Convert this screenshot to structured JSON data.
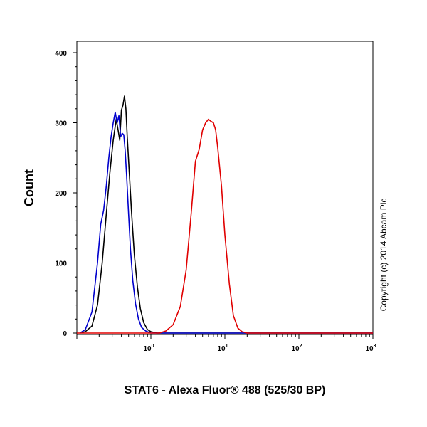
{
  "chart_data": {
    "type": "line",
    "title": "",
    "xlabel": "STAT6 - Alexa Fluor® 488 (525/30 BP)",
    "ylabel": "Count",
    "x_scale": "log",
    "xlim": [
      0.1,
      1000
    ],
    "ylim": [
      0,
      420
    ],
    "grid": false,
    "y_ticks": [
      0,
      100,
      200,
      300,
      400
    ],
    "x_ticks": [
      {
        "value": 1,
        "base": "10",
        "exp": "0"
      },
      {
        "value": 10,
        "base": "10",
        "exp": "1"
      },
      {
        "value": 100,
        "base": "10",
        "exp": "2"
      },
      {
        "value": 1000,
        "base": "10",
        "exp": "3"
      }
    ],
    "annotation": "Copyright (c) 2014 Abcam Plc",
    "series": [
      {
        "color": "#000000",
        "x": [
          0.11,
          0.13,
          0.16,
          0.19,
          0.22,
          0.25,
          0.28,
          0.31,
          0.34,
          0.36,
          0.38,
          0.4,
          0.42,
          0.44,
          0.46,
          0.48,
          0.51,
          0.55,
          0.6,
          0.66,
          0.72,
          0.8,
          0.9,
          1.0,
          1.2,
          1.5,
          2.0,
          3.0,
          1000
        ],
        "y": [
          0,
          2,
          10,
          40,
          100,
          170,
          230,
          275,
          305,
          290,
          275,
          318,
          325,
          338,
          320,
          280,
          230,
          170,
          110,
          65,
          35,
          15,
          5,
          2,
          0,
          0,
          0,
          0,
          0
        ]
      },
      {
        "color": "#0000cc",
        "x": [
          0.11,
          0.13,
          0.16,
          0.19,
          0.21,
          0.23,
          0.25,
          0.27,
          0.29,
          0.31,
          0.33,
          0.35,
          0.37,
          0.39,
          0.41,
          0.43,
          0.45,
          0.47,
          0.5,
          0.53,
          0.57,
          0.62,
          0.68,
          0.75,
          0.85,
          1.0,
          1.3,
          1000
        ],
        "y": [
          0,
          5,
          30,
          100,
          155,
          175,
          210,
          250,
          280,
          300,
          315,
          300,
          310,
          280,
          285,
          283,
          260,
          225,
          170,
          120,
          75,
          42,
          20,
          8,
          3,
          0,
          0,
          0
        ]
      },
      {
        "color": "#e00000",
        "x": [
          0.1,
          1.3,
          1.6,
          2.0,
          2.5,
          3.0,
          3.5,
          4.0,
          4.5,
          5.0,
          5.5,
          6.0,
          6.5,
          7.0,
          7.5,
          8.0,
          9.0,
          10.0,
          11.5,
          13.0,
          15.0,
          17.0,
          20.0,
          1000
        ],
        "y": [
          0,
          0,
          3,
          12,
          38,
          90,
          170,
          245,
          262,
          290,
          300,
          305,
          302,
          300,
          290,
          265,
          210,
          140,
          70,
          25,
          7,
          2,
          0,
          0
        ]
      }
    ]
  }
}
